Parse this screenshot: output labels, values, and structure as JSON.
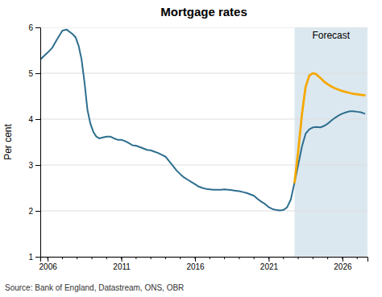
{
  "chart_data": {
    "type": "line",
    "title": "Mortgage rates",
    "ylabel": "Per cent",
    "source": "Source: Bank of England, Datastream, ONS, OBR",
    "annotations": [
      "Forecast"
    ],
    "span": {
      "start": 2022.75,
      "color": "#dce8f0"
    },
    "xlim": [
      2005.5,
      2027.7
    ],
    "ylim": [
      1,
      6
    ],
    "xticks": [
      2006,
      2011,
      2016,
      2021,
      2026
    ],
    "xticks_minor": [
      2006,
      2007,
      2008,
      2009,
      2010,
      2011,
      2012,
      2013,
      2014,
      2015,
      2016,
      2017,
      2018,
      2019,
      2020,
      2021,
      2022,
      2023,
      2024,
      2025,
      2026,
      2027
    ],
    "yticks": [
      1,
      2,
      3,
      4,
      5,
      6
    ],
    "grid": "y",
    "series": [
      {
        "color": "#2e6e8e",
        "x": [
          2005.5,
          2006.0,
          2006.3,
          2006.6,
          2007.0,
          2007.3,
          2007.5,
          2007.7,
          2007.9,
          2008.1,
          2008.3,
          2008.5,
          2008.7,
          2008.9,
          2009.1,
          2009.3,
          2009.5,
          2009.75,
          2010.0,
          2010.25,
          2010.5,
          2010.75,
          2011.0,
          2011.25,
          2011.5,
          2011.75,
          2012.0,
          2012.25,
          2012.5,
          2012.75,
          2013.0,
          2013.25,
          2013.5,
          2013.75,
          2014.0,
          2014.25,
          2014.5,
          2014.75,
          2015.0,
          2015.25,
          2015.5,
          2015.75,
          2016.0,
          2016.25,
          2016.5,
          2016.75,
          2017.0,
          2017.25,
          2017.5,
          2017.75,
          2018.0,
          2018.25,
          2018.5,
          2018.75,
          2019.0,
          2019.25,
          2019.5,
          2019.75,
          2020.0,
          2020.25,
          2020.5,
          2020.75,
          2021.0,
          2021.25,
          2021.5,
          2021.75,
          2022.0,
          2022.25,
          2022.5,
          2022.75
        ],
        "values": [
          5.3,
          5.45,
          5.55,
          5.72,
          5.93,
          5.95,
          5.9,
          5.85,
          5.78,
          5.6,
          5.3,
          4.8,
          4.2,
          3.9,
          3.72,
          3.62,
          3.58,
          3.6,
          3.62,
          3.62,
          3.58,
          3.55,
          3.55,
          3.52,
          3.48,
          3.43,
          3.42,
          3.39,
          3.36,
          3.33,
          3.32,
          3.29,
          3.26,
          3.22,
          3.18,
          3.08,
          2.98,
          2.88,
          2.8,
          2.73,
          2.68,
          2.63,
          2.58,
          2.53,
          2.5,
          2.48,
          2.47,
          2.46,
          2.46,
          2.46,
          2.47,
          2.46,
          2.45,
          2.44,
          2.43,
          2.41,
          2.39,
          2.36,
          2.33,
          2.26,
          2.2,
          2.15,
          2.08,
          2.04,
          2.02,
          2.01,
          2.02,
          2.08,
          2.25,
          2.62
        ]
      },
      {
        "color": "#2e6e8e",
        "x": [
          2022.75,
          2023.0,
          2023.25,
          2023.5,
          2023.75,
          2024.0,
          2024.25,
          2024.5,
          2024.75,
          2025.0,
          2025.25,
          2025.5,
          2025.75,
          2026.0,
          2026.25,
          2026.5,
          2026.75,
          2027.0,
          2027.25,
          2027.5
        ],
        "values": [
          2.62,
          3.0,
          3.4,
          3.68,
          3.78,
          3.82,
          3.83,
          3.82,
          3.85,
          3.9,
          3.97,
          4.03,
          4.08,
          4.12,
          4.15,
          4.17,
          4.17,
          4.16,
          4.15,
          4.12
        ]
      },
      {
        "color": "#f5a800",
        "x": [
          2022.75,
          2023.0,
          2023.25,
          2023.5,
          2023.75,
          2024.0,
          2024.15,
          2024.25,
          2024.5,
          2024.75,
          2025.0,
          2025.25,
          2025.5,
          2025.75,
          2026.0,
          2026.25,
          2026.5,
          2026.75,
          2027.0,
          2027.25,
          2027.5
        ],
        "values": [
          2.62,
          3.3,
          4.1,
          4.7,
          4.95,
          5.0,
          4.99,
          4.97,
          4.9,
          4.82,
          4.76,
          4.71,
          4.67,
          4.64,
          4.61,
          4.59,
          4.57,
          4.55,
          4.54,
          4.53,
          4.52
        ]
      }
    ]
  }
}
